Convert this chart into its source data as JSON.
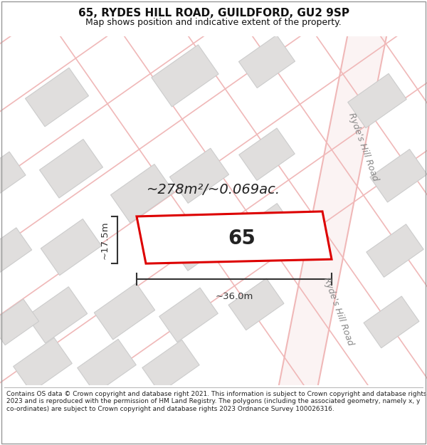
{
  "title": "65, RYDES HILL ROAD, GUILDFORD, GU2 9SP",
  "subtitle": "Map shows position and indicative extent of the property.",
  "footer": "Contains OS data © Crown copyright and database right 2021. This information is subject to Crown copyright and database rights 2023 and is reproduced with the permission of HM Land Registry. The polygons (including the associated geometry, namely x, y co-ordinates) are subject to Crown copyright and database rights 2023 Ordnance Survey 100026316.",
  "area_label": "~278m²/~0.069ac.",
  "plot_number": "65",
  "dim_width": "~36.0m",
  "dim_height": "~17.5m",
  "map_bg": "#ffffff",
  "road_line_color": "#f0b8b8",
  "road_fill_color": "#f8e8e8",
  "plot_fill": "#ffffff",
  "plot_edge": "#dd0000",
  "building_fill": "#e0dedd",
  "building_edge": "#cccccc",
  "dim_color": "#333333",
  "title_color": "#111111",
  "road_label_color": "#888888",
  "title_fontsize": 11,
  "subtitle_fontsize": 9,
  "footer_fontsize": 6.5
}
